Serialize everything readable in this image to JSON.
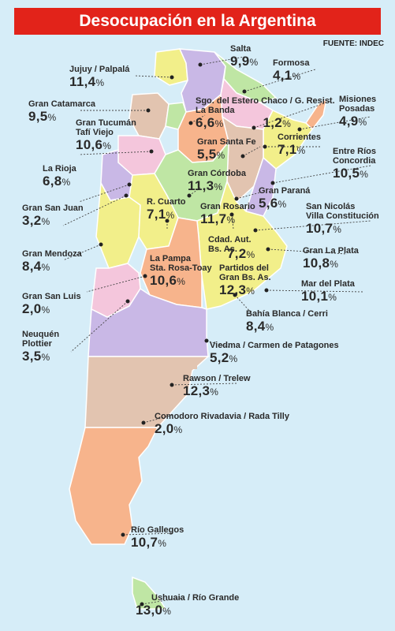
{
  "title": "Desocupación en la Argentina",
  "source": "FUENTE: INDEC",
  "colors": {
    "title_bg": "#e2231a",
    "ocean": "#d6edf8",
    "province_pink": "#f4c6dc",
    "province_yellow": "#f2ef8a",
    "province_green": "#bfe6a4",
    "province_lilac": "#c9b8e6",
    "province_orange": "#f7b48c",
    "province_tan": "#e2c4b0"
  },
  "labels": [
    {
      "name": "Salta",
      "value": "9,9"
    },
    {
      "name": "Jujuy / Palpalá",
      "value": "11,4"
    },
    {
      "name": "Formosa",
      "value": "4,1"
    },
    {
      "name": "Gran Catamarca",
      "value": "9,5"
    },
    {
      "name": "Sgo. del Estero Chaco / G. Resist.",
      "name2": "La Banda",
      "value": "6,6",
      "value2": "1,2"
    },
    {
      "name": "Misiones",
      "name2": "Posadas",
      "value": "4,9"
    },
    {
      "name": "Gran Tucumán",
      "name2": "Tafí Viejo",
      "value": "10,6"
    },
    {
      "name": "Gran Santa Fe",
      "value": "5,5"
    },
    {
      "name": "Corrientes",
      "value": "7,1"
    },
    {
      "name": "Entre Ríos",
      "name2": "Concordia",
      "value": "10,5"
    },
    {
      "name": "La Rioja",
      "value": "6,8"
    },
    {
      "name": "Gran Córdoba",
      "value": "11,3"
    },
    {
      "name": "Gran Paraná",
      "value": "5,6"
    },
    {
      "name": "Gran San Juan",
      "value": "3,2"
    },
    {
      "name": "R. Cuarto",
      "value": "7,1"
    },
    {
      "name": "Gran Rosario",
      "value": "11,7"
    },
    {
      "name": "San Nicolás",
      "name2": "Villa Constitución",
      "value": "10,7"
    },
    {
      "name": "Gran Mendoza",
      "value": "8,4"
    },
    {
      "name": "Cdad. Aut.",
      "name2": "Bs. As.",
      "value": "7,2"
    },
    {
      "name": "Gran La Plata",
      "value": "10,8"
    },
    {
      "name": "La Pampa",
      "name2": "Sta. Rosa-Toay",
      "value": "10,6"
    },
    {
      "name": "Partidos del",
      "name2": "Gran Bs. As.",
      "value": "12,3"
    },
    {
      "name": "Gran San Luis",
      "value": "2,0"
    },
    {
      "name": "Mar del Plata",
      "value": "10,1"
    },
    {
      "name": "Bahía Blanca / Cerri",
      "value": "8,4"
    },
    {
      "name": "Neuquén",
      "name2": "Plottier",
      "value": "3,5"
    },
    {
      "name": "Viedma / Carmen de Patagones",
      "value": "5,2"
    },
    {
      "name": "Rawson / Trelew",
      "value": "12,3"
    },
    {
      "name": "Comodoro Rivadavia / Rada Tilly",
      "value": "2,0"
    },
    {
      "name": "Río Gallegos",
      "value": "10,7"
    },
    {
      "name": "Ushuaia / Río Grande",
      "value": "13,0"
    }
  ],
  "percent_sign": "%"
}
